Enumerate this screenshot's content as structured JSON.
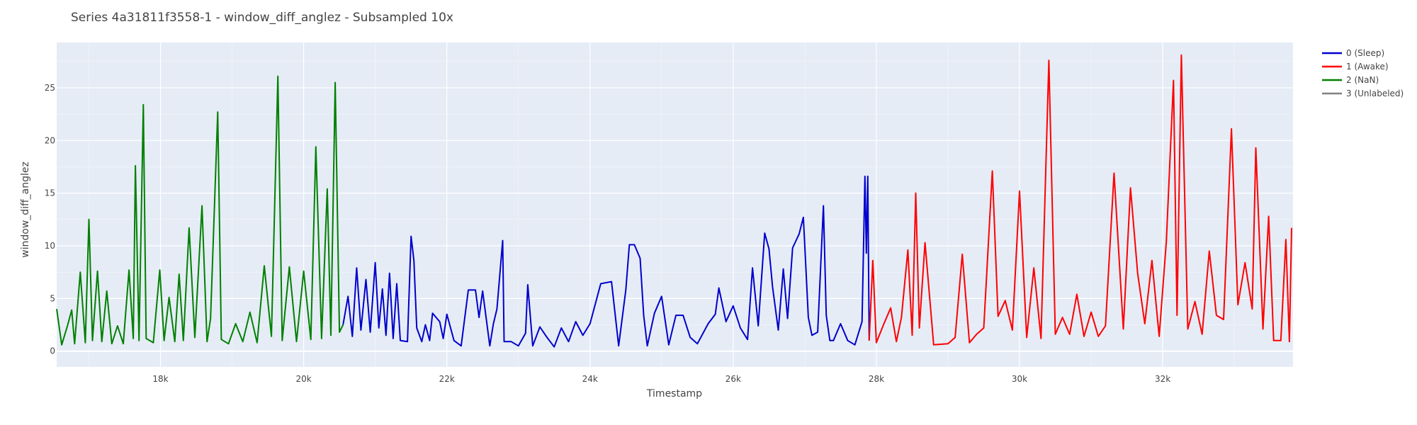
{
  "chart_data": {
    "type": "line",
    "title": "Series 4a31811f3558-1 - window_diff_anglez - Subsampled 10x",
    "xlabel": "Timestamp",
    "ylabel": "window_diff_anglez",
    "xlim": [
      16550,
      33820
    ],
    "ylim": [
      -1.5,
      29.3
    ],
    "x_ticks": [
      18000,
      20000,
      22000,
      24000,
      26000,
      28000,
      30000,
      32000
    ],
    "x_tick_labels": [
      "18k",
      "20k",
      "22k",
      "24k",
      "26k",
      "28k",
      "30k",
      "32k"
    ],
    "y_ticks": [
      0,
      5,
      10,
      15,
      20,
      25
    ],
    "y_tick_labels": [
      "0",
      "5",
      "10",
      "15",
      "20",
      "25"
    ],
    "grid": true,
    "legend_position": "top-right",
    "background": "#e5ecf6",
    "series": [
      {
        "name": "0 (Sleep)",
        "color": "#0000cc",
        "points": [
          [
            20550,
            2.5
          ],
          [
            20620,
            5.2
          ],
          [
            20680,
            1.4
          ],
          [
            20740,
            7.9
          ],
          [
            20800,
            2.0
          ],
          [
            20870,
            6.8
          ],
          [
            20930,
            1.8
          ],
          [
            21000,
            8.4
          ],
          [
            21050,
            2.2
          ],
          [
            21100,
            5.9
          ],
          [
            21150,
            1.5
          ],
          [
            21200,
            7.4
          ],
          [
            21250,
            1.2
          ],
          [
            21300,
            6.4
          ],
          [
            21350,
            1.0
          ],
          [
            21450,
            0.9
          ],
          [
            21500,
            10.9
          ],
          [
            21540,
            8.6
          ],
          [
            21580,
            2.2
          ],
          [
            21650,
            0.9
          ],
          [
            21700,
            2.5
          ],
          [
            21760,
            1.0
          ],
          [
            21800,
            3.6
          ],
          [
            21850,
            3.2
          ],
          [
            21900,
            2.8
          ],
          [
            21950,
            1.2
          ],
          [
            22000,
            3.5
          ],
          [
            22100,
            1.0
          ],
          [
            22200,
            0.5
          ],
          [
            22300,
            5.8
          ],
          [
            22400,
            5.8
          ],
          [
            22450,
            3.2
          ],
          [
            22500,
            5.7
          ],
          [
            22600,
            0.5
          ],
          [
            22650,
            2.6
          ],
          [
            22700,
            4.0
          ],
          [
            22780,
            10.5
          ],
          [
            22800,
            0.9
          ],
          [
            22900,
            0.9
          ],
          [
            23000,
            0.5
          ],
          [
            23100,
            1.7
          ],
          [
            23130,
            6.3
          ],
          [
            23200,
            0.5
          ],
          [
            23300,
            2.3
          ],
          [
            23400,
            1.3
          ],
          [
            23500,
            0.4
          ],
          [
            23600,
            2.2
          ],
          [
            23700,
            0.9
          ],
          [
            23800,
            2.8
          ],
          [
            23900,
            1.5
          ],
          [
            24000,
            2.6
          ],
          [
            24150,
            6.4
          ],
          [
            24300,
            6.6
          ],
          [
            24400,
            0.5
          ],
          [
            24500,
            5.8
          ],
          [
            24550,
            10.1
          ],
          [
            24620,
            10.1
          ],
          [
            24700,
            8.8
          ],
          [
            24750,
            3.4
          ],
          [
            24800,
            0.5
          ],
          [
            24900,
            3.6
          ],
          [
            25000,
            5.2
          ],
          [
            25100,
            0.6
          ],
          [
            25200,
            3.4
          ],
          [
            25300,
            3.4
          ],
          [
            25400,
            1.3
          ],
          [
            25500,
            0.7
          ],
          [
            25650,
            2.6
          ],
          [
            25750,
            3.5
          ],
          [
            25800,
            6.0
          ],
          [
            25900,
            2.8
          ],
          [
            26000,
            4.3
          ],
          [
            26100,
            2.2
          ],
          [
            26200,
            1.1
          ],
          [
            26270,
            7.9
          ],
          [
            26350,
            2.4
          ],
          [
            26440,
            11.2
          ],
          [
            26500,
            9.7
          ],
          [
            26550,
            6.1
          ],
          [
            26630,
            2.0
          ],
          [
            26700,
            7.8
          ],
          [
            26760,
            3.1
          ],
          [
            26830,
            9.8
          ],
          [
            26920,
            11.1
          ],
          [
            26980,
            12.7
          ],
          [
            27050,
            3.2
          ],
          [
            27100,
            1.5
          ],
          [
            27180,
            1.8
          ],
          [
            27260,
            13.8
          ],
          [
            27300,
            3.4
          ],
          [
            27350,
            1.0
          ],
          [
            27400,
            1.0
          ],
          [
            27500,
            2.6
          ],
          [
            27600,
            1.0
          ],
          [
            27700,
            0.6
          ],
          [
            27800,
            2.8
          ],
          [
            27840,
            16.6
          ],
          [
            27860,
            9.3
          ],
          [
            27880,
            16.6
          ],
          [
            27900,
            1.0
          ]
        ]
      },
      {
        "name": "1 (Awake)",
        "color": "#ff0000",
        "points": [
          [
            27900,
            1.0
          ],
          [
            27950,
            8.6
          ],
          [
            28000,
            0.8
          ],
          [
            28100,
            2.5
          ],
          [
            28200,
            4.1
          ],
          [
            28280,
            0.9
          ],
          [
            28350,
            3.2
          ],
          [
            28440,
            9.6
          ],
          [
            28500,
            1.5
          ],
          [
            28550,
            15.0
          ],
          [
            28600,
            2.2
          ],
          [
            28680,
            10.3
          ],
          [
            28800,
            0.6
          ],
          [
            29000,
            0.7
          ],
          [
            29100,
            1.3
          ],
          [
            29200,
            9.2
          ],
          [
            29300,
            0.8
          ],
          [
            29400,
            1.6
          ],
          [
            29500,
            2.2
          ],
          [
            29620,
            17.1
          ],
          [
            29700,
            3.3
          ],
          [
            29800,
            4.8
          ],
          [
            29900,
            2.0
          ],
          [
            30000,
            15.2
          ],
          [
            30100,
            1.3
          ],
          [
            30200,
            7.9
          ],
          [
            30300,
            1.2
          ],
          [
            30410,
            27.6
          ],
          [
            30500,
            1.6
          ],
          [
            30600,
            3.2
          ],
          [
            30700,
            1.6
          ],
          [
            30800,
            5.4
          ],
          [
            30900,
            1.4
          ],
          [
            31000,
            3.7
          ],
          [
            31100,
            1.4
          ],
          [
            31200,
            2.4
          ],
          [
            31320,
            16.9
          ],
          [
            31450,
            2.1
          ],
          [
            31550,
            15.5
          ],
          [
            31650,
            7.4
          ],
          [
            31750,
            2.6
          ],
          [
            31850,
            8.6
          ],
          [
            31950,
            1.4
          ],
          [
            32050,
            10.4
          ],
          [
            32150,
            25.7
          ],
          [
            32200,
            3.4
          ],
          [
            32260,
            28.1
          ],
          [
            32350,
            2.1
          ],
          [
            32450,
            4.7
          ],
          [
            32550,
            1.6
          ],
          [
            32650,
            9.5
          ],
          [
            32750,
            3.4
          ],
          [
            32850,
            3.0
          ],
          [
            32960,
            21.1
          ],
          [
            33050,
            4.4
          ],
          [
            33150,
            8.4
          ],
          [
            33250,
            4.0
          ],
          [
            33300,
            19.3
          ],
          [
            33400,
            2.1
          ],
          [
            33480,
            12.8
          ],
          [
            33550,
            1.0
          ],
          [
            33650,
            1.0
          ],
          [
            33720,
            10.6
          ],
          [
            33770,
            0.9
          ],
          [
            33800,
            11.7
          ]
        ]
      },
      {
        "name": "2 (NaN)",
        "color": "#008000",
        "points": [
          [
            16550,
            4.0
          ],
          [
            16620,
            0.6
          ],
          [
            16700,
            2.4
          ],
          [
            16760,
            3.9
          ],
          [
            16800,
            0.7
          ],
          [
            16880,
            7.5
          ],
          [
            16950,
            0.8
          ],
          [
            17000,
            12.5
          ],
          [
            17050,
            1.0
          ],
          [
            17120,
            7.6
          ],
          [
            17180,
            0.9
          ],
          [
            17250,
            5.7
          ],
          [
            17320,
            0.7
          ],
          [
            17400,
            2.4
          ],
          [
            17480,
            0.7
          ],
          [
            17560,
            7.7
          ],
          [
            17620,
            1.2
          ],
          [
            17650,
            17.6
          ],
          [
            17700,
            1.0
          ],
          [
            17760,
            23.4
          ],
          [
            17800,
            1.2
          ],
          [
            17900,
            0.8
          ],
          [
            17990,
            7.7
          ],
          [
            18050,
            1.0
          ],
          [
            18120,
            5.1
          ],
          [
            18200,
            0.9
          ],
          [
            18260,
            7.3
          ],
          [
            18320,
            1.0
          ],
          [
            18400,
            11.7
          ],
          [
            18480,
            1.3
          ],
          [
            18580,
            13.8
          ],
          [
            18650,
            0.9
          ],
          [
            18700,
            3.1
          ],
          [
            18800,
            22.7
          ],
          [
            18850,
            1.1
          ],
          [
            18950,
            0.7
          ],
          [
            19050,
            2.6
          ],
          [
            19150,
            0.9
          ],
          [
            19250,
            3.7
          ],
          [
            19350,
            0.8
          ],
          [
            19450,
            8.1
          ],
          [
            19550,
            1.4
          ],
          [
            19640,
            26.1
          ],
          [
            19700,
            1.0
          ],
          [
            19800,
            8.0
          ],
          [
            19900,
            0.9
          ],
          [
            20000,
            7.6
          ],
          [
            20100,
            1.1
          ],
          [
            20170,
            19.4
          ],
          [
            20250,
            1.2
          ],
          [
            20330,
            15.4
          ],
          [
            20380,
            1.5
          ],
          [
            20440,
            25.5
          ],
          [
            20500,
            1.8
          ],
          [
            20550,
            2.5
          ]
        ]
      },
      {
        "name": "3 (Unlabeled)",
        "color": "#808080",
        "points": []
      }
    ]
  }
}
